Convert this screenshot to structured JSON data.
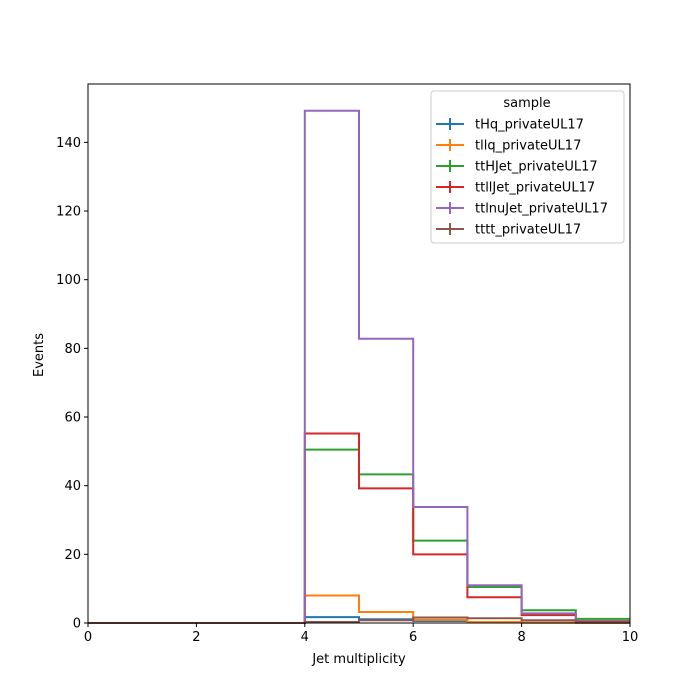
{
  "chart_data": {
    "type": "step-histogram",
    "xlabel": "Jet multiplicity",
    "ylabel": "Events",
    "xlim": [
      0,
      10
    ],
    "ylim": [
      0,
      157
    ],
    "xticks": [
      0,
      2,
      4,
      6,
      8,
      10
    ],
    "yticks": [
      0,
      20,
      40,
      60,
      80,
      100,
      120,
      140
    ],
    "bin_edges": [
      0,
      1,
      2,
      3,
      4,
      5,
      6,
      7,
      8,
      9,
      10
    ],
    "grid": false,
    "legend": {
      "title": "sample",
      "placement": "top-right"
    },
    "series": [
      {
        "name": "tHq_privateUL17",
        "color": "#1f77b4",
        "values": [
          0,
          0,
          0,
          0,
          1.7,
          1.1,
          0.6,
          0.3,
          0.1,
          0.05
        ]
      },
      {
        "name": "tllq_privateUL17",
        "color": "#ff7f0e",
        "values": [
          0,
          0,
          0,
          0,
          8.0,
          3.2,
          0.9,
          0.3,
          0.1,
          0.05
        ]
      },
      {
        "name": "ttHJet_privateUL17",
        "color": "#2ca02c",
        "values": [
          0,
          0,
          0,
          0,
          50.5,
          43.3,
          24.0,
          10.5,
          3.7,
          1.2
        ]
      },
      {
        "name": "ttllJet_privateUL17",
        "color": "#d62728",
        "values": [
          0,
          0,
          0,
          0,
          55.2,
          39.2,
          20.0,
          7.5,
          2.3,
          0.6
        ]
      },
      {
        "name": "ttlnuJet_privateUL17",
        "color": "#9467bd",
        "values": [
          0,
          0,
          0,
          0,
          149.2,
          82.8,
          33.8,
          11.0,
          2.8,
          0.5
        ]
      },
      {
        "name": "tttt_privateUL17",
        "color": "#8c564b",
        "values": [
          0,
          0,
          0,
          0,
          0.3,
          0.8,
          1.6,
          1.4,
          0.8,
          0.3
        ]
      }
    ]
  }
}
